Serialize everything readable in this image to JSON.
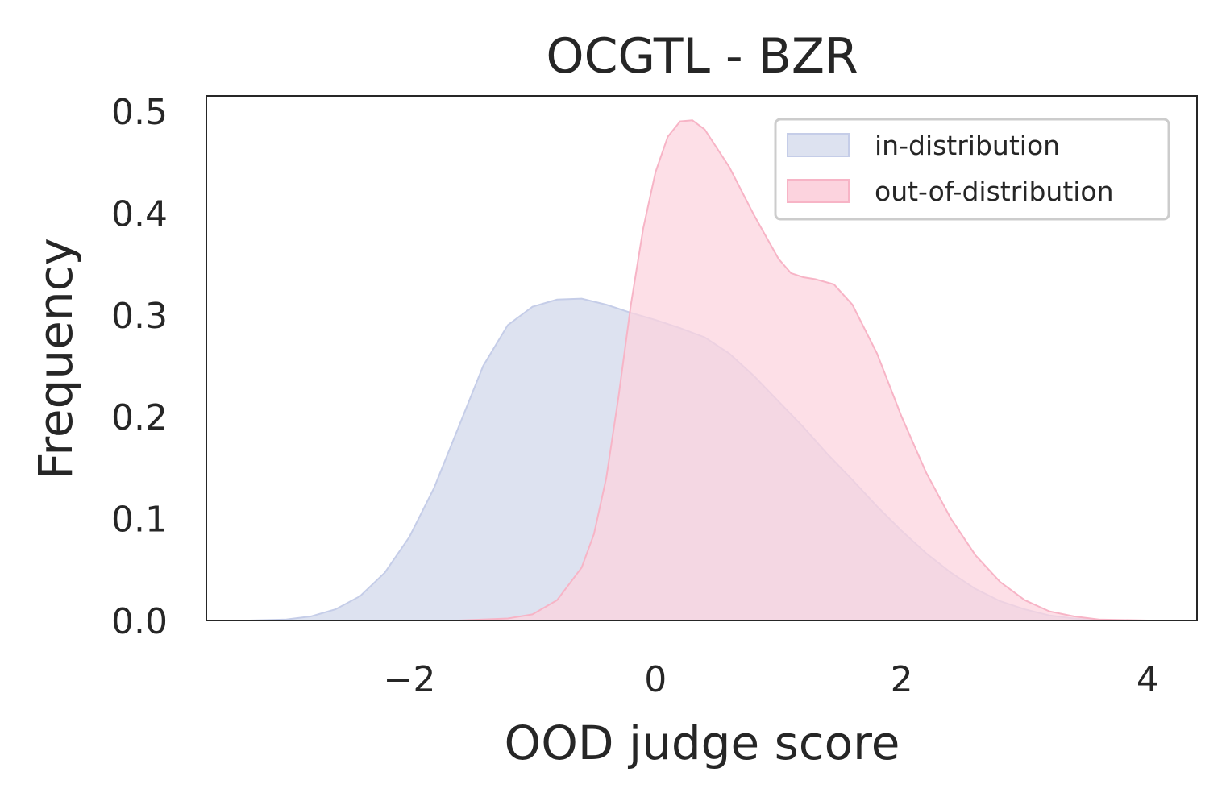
{
  "chart_data": {
    "type": "area",
    "title": "OCGTL - BZR",
    "xlabel": "OOD judge score",
    "ylabel": "Frequency",
    "xlim": [
      -3.65,
      4.4
    ],
    "ylim": [
      0,
      0.515
    ],
    "x_ticks": [
      -2,
      0,
      2,
      4
    ],
    "x_tick_labels": [
      "−2",
      "0",
      "2",
      "4"
    ],
    "y_ticks": [
      0.0,
      0.1,
      0.2,
      0.3,
      0.4,
      0.5
    ],
    "y_tick_labels": [
      "0.0",
      "0.1",
      "0.2",
      "0.3",
      "0.4",
      "0.5"
    ],
    "grid": false,
    "legend_position": "top-right",
    "series": [
      {
        "name": "in-distribution",
        "fill": "#dde2f0",
        "stroke": "#c5cde8",
        "points": [
          [
            -3.3,
            0.0
          ],
          [
            -3.0,
            0.001
          ],
          [
            -2.8,
            0.004
          ],
          [
            -2.6,
            0.011
          ],
          [
            -2.4,
            0.024
          ],
          [
            -2.2,
            0.047
          ],
          [
            -2.0,
            0.082
          ],
          [
            -1.8,
            0.13
          ],
          [
            -1.6,
            0.19
          ],
          [
            -1.4,
            0.25
          ],
          [
            -1.2,
            0.29
          ],
          [
            -1.0,
            0.308
          ],
          [
            -0.8,
            0.315
          ],
          [
            -0.6,
            0.316
          ],
          [
            -0.4,
            0.31
          ],
          [
            -0.2,
            0.302
          ],
          [
            0.0,
            0.295
          ],
          [
            0.2,
            0.287
          ],
          [
            0.4,
            0.278
          ],
          [
            0.6,
            0.262
          ],
          [
            0.8,
            0.24
          ],
          [
            1.0,
            0.215
          ],
          [
            1.2,
            0.19
          ],
          [
            1.4,
            0.163
          ],
          [
            1.6,
            0.138
          ],
          [
            1.8,
            0.112
          ],
          [
            2.0,
            0.088
          ],
          [
            2.2,
            0.066
          ],
          [
            2.4,
            0.047
          ],
          [
            2.6,
            0.031
          ],
          [
            2.8,
            0.019
          ],
          [
            3.0,
            0.011
          ],
          [
            3.2,
            0.005
          ],
          [
            3.4,
            0.002
          ],
          [
            3.6,
            0.0
          ]
        ]
      },
      {
        "name": "out-of-distribution",
        "fill": "#fcd3de",
        "stroke": "#f7b4c6",
        "points": [
          [
            -1.6,
            0.0
          ],
          [
            -1.2,
            0.002
          ],
          [
            -1.0,
            0.006
          ],
          [
            -0.8,
            0.02
          ],
          [
            -0.6,
            0.052
          ],
          [
            -0.5,
            0.085
          ],
          [
            -0.4,
            0.14
          ],
          [
            -0.3,
            0.22
          ],
          [
            -0.2,
            0.31
          ],
          [
            -0.1,
            0.385
          ],
          [
            0.0,
            0.44
          ],
          [
            0.1,
            0.475
          ],
          [
            0.2,
            0.49
          ],
          [
            0.3,
            0.491
          ],
          [
            0.4,
            0.482
          ],
          [
            0.6,
            0.445
          ],
          [
            0.8,
            0.398
          ],
          [
            1.0,
            0.355
          ],
          [
            1.1,
            0.341
          ],
          [
            1.2,
            0.337
          ],
          [
            1.3,
            0.335
          ],
          [
            1.45,
            0.33
          ],
          [
            1.6,
            0.31
          ],
          [
            1.8,
            0.262
          ],
          [
            2.0,
            0.2
          ],
          [
            2.2,
            0.145
          ],
          [
            2.4,
            0.1
          ],
          [
            2.6,
            0.064
          ],
          [
            2.8,
            0.038
          ],
          [
            3.0,
            0.02
          ],
          [
            3.2,
            0.009
          ],
          [
            3.4,
            0.004
          ],
          [
            3.6,
            0.001
          ],
          [
            4.0,
            0.0
          ]
        ]
      }
    ]
  }
}
